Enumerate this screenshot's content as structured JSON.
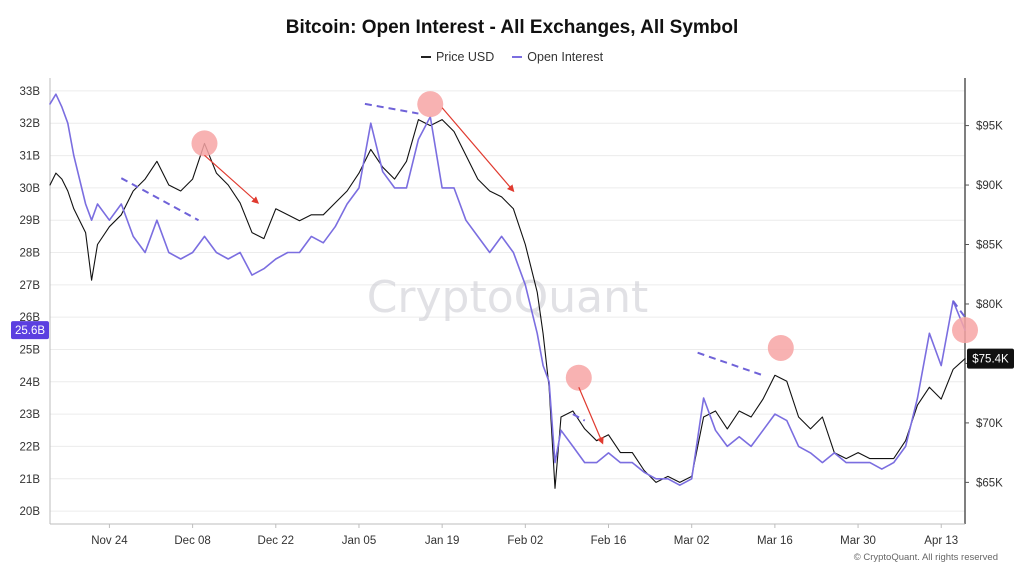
{
  "title": "Bitcoin: Open Interest - All Exchanges, All Symbol",
  "legend": [
    {
      "label": "Price USD",
      "color": "#222222"
    },
    {
      "label": "Open Interest",
      "color": "#7b6ee0"
    }
  ],
  "watermark": "CryptoQuant",
  "credit": "© CryptoQuant. All rights reserved",
  "colors": {
    "price": "#111111",
    "open_interest": "#7b6ee0",
    "marker": "#f7a4a4",
    "arrow": "#e03a2f",
    "dash": "#6f62d8",
    "oi_badge": "#5b3fe0",
    "price_badge": "#111111"
  },
  "chart_data": {
    "type": "line",
    "x_axis": {
      "ticks": [
        "Nov 24",
        "Dec 08",
        "Dec 22",
        "Jan 05",
        "Jan 19",
        "Feb 02",
        "Feb 16",
        "Mar 02",
        "Mar 16",
        "Mar 30",
        "Apr 13"
      ],
      "range": [
        "Nov 14",
        "Apr 17"
      ]
    },
    "y_left": {
      "ticks": [
        "20B",
        "21B",
        "22B",
        "23B",
        "24B",
        "25B",
        "26B",
        "27B",
        "28B",
        "29B",
        "30B",
        "31B",
        "32B",
        "33B"
      ],
      "range": [
        19.6,
        33.4
      ],
      "current_label": "25.6B"
    },
    "y_right": {
      "ticks": [
        "$65K",
        "$70K",
        "$75K",
        "$80K",
        "$85K",
        "$90K",
        "$95K"
      ],
      "range": [
        61500,
        99000
      ],
      "current_label": "$75.4K"
    },
    "grid": true,
    "legend_position": "top-center",
    "series": [
      {
        "name": "Price USD",
        "axis": "right",
        "points": [
          [
            "Nov 14",
            90000
          ],
          [
            "Nov 15",
            91000
          ],
          [
            "Nov 16",
            90500
          ],
          [
            "Nov 17",
            89500
          ],
          [
            "Nov 18",
            88000
          ],
          [
            "Nov 20",
            86000
          ],
          [
            "Nov 21",
            82000
          ],
          [
            "Nov 22",
            85000
          ],
          [
            "Nov 24",
            86500
          ],
          [
            "Nov 26",
            87500
          ],
          [
            "Nov 28",
            89500
          ],
          [
            "Nov 30",
            90500
          ],
          [
            "Dec 02",
            92000
          ],
          [
            "Dec 04",
            90000
          ],
          [
            "Dec 06",
            89500
          ],
          [
            "Dec 08",
            90500
          ],
          [
            "Dec 10",
            93500
          ],
          [
            "Dec 12",
            91000
          ],
          [
            "Dec 14",
            90000
          ],
          [
            "Dec 16",
            88500
          ],
          [
            "Dec 18",
            86000
          ],
          [
            "Dec 20",
            85500
          ],
          [
            "Dec 22",
            88000
          ],
          [
            "Dec 24",
            87500
          ],
          [
            "Dec 26",
            87000
          ],
          [
            "Dec 28",
            87500
          ],
          [
            "Dec 30",
            87500
          ],
          [
            "Jan 01",
            88500
          ],
          [
            "Jan 03",
            89500
          ],
          [
            "Jan 05",
            91000
          ],
          [
            "Jan 07",
            93000
          ],
          [
            "Jan 09",
            91500
          ],
          [
            "Jan 11",
            90500
          ],
          [
            "Jan 13",
            92000
          ],
          [
            "Jan 15",
            95500
          ],
          [
            "Jan 17",
            95000
          ],
          [
            "Jan 19",
            95500
          ],
          [
            "Jan 21",
            94500
          ],
          [
            "Jan 23",
            92500
          ],
          [
            "Jan 25",
            90500
          ],
          [
            "Jan 27",
            89500
          ],
          [
            "Jan 29",
            89000
          ],
          [
            "Jan 31",
            88000
          ],
          [
            "Feb 02",
            85000
          ],
          [
            "Feb 04",
            81000
          ],
          [
            "Feb 05",
            77500
          ],
          [
            "Feb 06",
            73000
          ],
          [
            "Feb 07",
            64500
          ],
          [
            "Feb 08",
            70500
          ],
          [
            "Feb 10",
            71000
          ],
          [
            "Feb 12",
            69500
          ],
          [
            "Feb 14",
            68500
          ],
          [
            "Feb 16",
            69000
          ],
          [
            "Feb 18",
            67500
          ],
          [
            "Feb 20",
            67500
          ],
          [
            "Feb 22",
            66000
          ],
          [
            "Feb 24",
            65000
          ],
          [
            "Feb 26",
            65500
          ],
          [
            "Feb 28",
            65000
          ],
          [
            "Mar 02",
            65500
          ],
          [
            "Mar 04",
            70500
          ],
          [
            "Mar 06",
            71000
          ],
          [
            "Mar 08",
            69500
          ],
          [
            "Mar 10",
            71000
          ],
          [
            "Mar 12",
            70500
          ],
          [
            "Mar 14",
            72000
          ],
          [
            "Mar 16",
            74000
          ],
          [
            "Mar 18",
            73500
          ],
          [
            "Mar 20",
            70500
          ],
          [
            "Mar 22",
            69500
          ],
          [
            "Mar 24",
            70500
          ],
          [
            "Mar 26",
            67500
          ],
          [
            "Mar 28",
            67000
          ],
          [
            "Mar 30",
            67500
          ],
          [
            "Apr 01",
            67000
          ],
          [
            "Apr 03",
            67000
          ],
          [
            "Apr 05",
            67000
          ],
          [
            "Apr 07",
            68500
          ],
          [
            "Apr 09",
            71500
          ],
          [
            "Apr 11",
            73000
          ],
          [
            "Apr 13",
            72000
          ],
          [
            "Apr 15",
            74500
          ],
          [
            "Apr 17",
            75400
          ]
        ]
      },
      {
        "name": "Open Interest",
        "axis": "left",
        "points": [
          [
            "Nov 14",
            32.6
          ],
          [
            "Nov 15",
            32.9
          ],
          [
            "Nov 16",
            32.5
          ],
          [
            "Nov 17",
            32.0
          ],
          [
            "Nov 18",
            31.0
          ],
          [
            "Nov 20",
            29.5
          ],
          [
            "Nov 21",
            29.0
          ],
          [
            "Nov 22",
            29.5
          ],
          [
            "Nov 24",
            29.0
          ],
          [
            "Nov 26",
            29.5
          ],
          [
            "Nov 28",
            28.5
          ],
          [
            "Nov 30",
            28.0
          ],
          [
            "Dec 02",
            29.0
          ],
          [
            "Dec 04",
            28.0
          ],
          [
            "Dec 06",
            27.8
          ],
          [
            "Dec 08",
            28.0
          ],
          [
            "Dec 10",
            28.5
          ],
          [
            "Dec 12",
            28.0
          ],
          [
            "Dec 14",
            27.8
          ],
          [
            "Dec 16",
            28.0
          ],
          [
            "Dec 18",
            27.3
          ],
          [
            "Dec 20",
            27.5
          ],
          [
            "Dec 22",
            27.8
          ],
          [
            "Dec 24",
            28.0
          ],
          [
            "Dec 26",
            28.0
          ],
          [
            "Dec 28",
            28.5
          ],
          [
            "Dec 30",
            28.3
          ],
          [
            "Jan 01",
            28.8
          ],
          [
            "Jan 03",
            29.5
          ],
          [
            "Jan 05",
            30.0
          ],
          [
            "Jan 07",
            32.0
          ],
          [
            "Jan 09",
            30.5
          ],
          [
            "Jan 11",
            30.0
          ],
          [
            "Jan 13",
            30.0
          ],
          [
            "Jan 15",
            31.5
          ],
          [
            "Jan 17",
            32.2
          ],
          [
            "Jan 19",
            30.0
          ],
          [
            "Jan 21",
            30.0
          ],
          [
            "Jan 23",
            29.0
          ],
          [
            "Jan 25",
            28.5
          ],
          [
            "Jan 27",
            28.0
          ],
          [
            "Jan 29",
            28.5
          ],
          [
            "Jan 31",
            28.0
          ],
          [
            "Feb 02",
            27.0
          ],
          [
            "Feb 04",
            25.5
          ],
          [
            "Feb 05",
            24.5
          ],
          [
            "Feb 06",
            24.0
          ],
          [
            "Feb 07",
            21.5
          ],
          [
            "Feb 08",
            22.5
          ],
          [
            "Feb 10",
            22.0
          ],
          [
            "Feb 12",
            21.5
          ],
          [
            "Feb 14",
            21.5
          ],
          [
            "Feb 16",
            21.8
          ],
          [
            "Feb 18",
            21.5
          ],
          [
            "Feb 20",
            21.5
          ],
          [
            "Feb 22",
            21.2
          ],
          [
            "Feb 24",
            21.0
          ],
          [
            "Feb 26",
            21.0
          ],
          [
            "Feb 28",
            20.8
          ],
          [
            "Mar 02",
            21.0
          ],
          [
            "Mar 04",
            23.5
          ],
          [
            "Mar 06",
            22.5
          ],
          [
            "Mar 08",
            22.0
          ],
          [
            "Mar 10",
            22.3
          ],
          [
            "Mar 12",
            22.0
          ],
          [
            "Mar 14",
            22.5
          ],
          [
            "Mar 16",
            23.0
          ],
          [
            "Mar 18",
            22.8
          ],
          [
            "Mar 20",
            22.0
          ],
          [
            "Mar 22",
            21.8
          ],
          [
            "Mar 24",
            21.5
          ],
          [
            "Mar 26",
            21.8
          ],
          [
            "Mar 28",
            21.5
          ],
          [
            "Mar 30",
            21.5
          ],
          [
            "Apr 01",
            21.5
          ],
          [
            "Apr 03",
            21.3
          ],
          [
            "Apr 05",
            21.5
          ],
          [
            "Apr 07",
            22.0
          ],
          [
            "Apr 09",
            23.5
          ],
          [
            "Apr 11",
            25.5
          ],
          [
            "Apr 13",
            24.5
          ],
          [
            "Apr 15",
            26.5
          ],
          [
            "Apr 17",
            25.6
          ]
        ]
      }
    ],
    "highlights": [
      {
        "date": "Dec 10",
        "price": 93500
      },
      {
        "date": "Jan 17",
        "price": 96800
      },
      {
        "date": "Feb 11",
        "price": 73800
      },
      {
        "date": "Mar 17",
        "price": 76300
      },
      {
        "date": "Apr 17",
        "price": 77800
      }
    ],
    "price_down_arrows": [
      {
        "from": [
          "Dec 10",
          92500
        ],
        "to": [
          "Dec 19",
          88500
        ]
      },
      {
        "from": [
          "Jan 19",
          96500
        ],
        "to": [
          "Jan 31",
          89500
        ]
      },
      {
        "from": [
          "Feb 11",
          73000
        ],
        "to": [
          "Feb 15",
          68300
        ]
      }
    ],
    "oi_divergence_lines": [
      {
        "from": [
          "Nov 26",
          30.3
        ],
        "to": [
          "Dec 09",
          29.0
        ]
      },
      {
        "from": [
          "Jan 06",
          32.6
        ],
        "to": [
          "Jan 15",
          32.3
        ]
      },
      {
        "from": [
          "Feb 10",
          23.0
        ],
        "to": [
          "Feb 12",
          22.8
        ]
      },
      {
        "from": [
          "Mar 03",
          24.9
        ],
        "to": [
          "Mar 14",
          24.2
        ]
      },
      {
        "from": [
          "Apr 15",
          26.5
        ],
        "to": [
          "Apr 17",
          26.0
        ]
      }
    ]
  }
}
